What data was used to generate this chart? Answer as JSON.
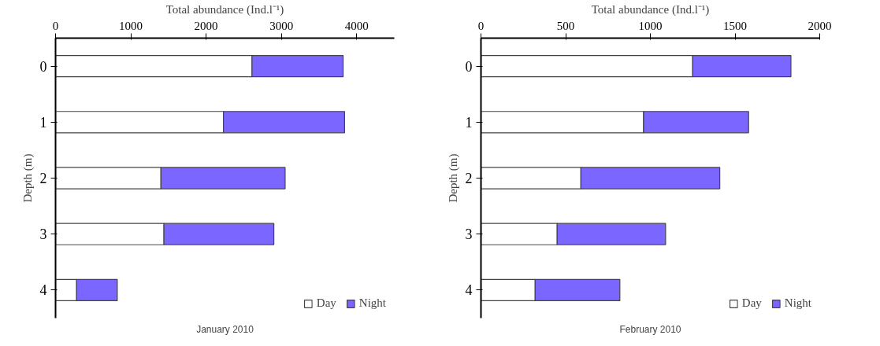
{
  "chart_data": [
    {
      "type": "bar",
      "orientation": "horizontal",
      "stacked": true,
      "title": "January 2010",
      "xlabel": "Total abundance (Ind.l⁻¹)",
      "ylabel": "Depth (m)",
      "categories": [
        "0",
        "1",
        "2",
        "3",
        "4"
      ],
      "series": [
        {
          "name": "Day",
          "color": "#ffffff",
          "values": [
            2610,
            2230,
            1400,
            1440,
            280
          ]
        },
        {
          "name": "Night",
          "color": "#7b66ff",
          "values": [
            1210,
            1610,
            1650,
            1460,
            540
          ]
        }
      ],
      "xlim": [
        0,
        4500
      ],
      "xticks": [
        0,
        1000,
        2000,
        3000,
        4000
      ],
      "grid": false,
      "legend": "bottom right"
    },
    {
      "type": "bar",
      "orientation": "horizontal",
      "stacked": true,
      "title": "February 2010",
      "xlabel": "Total abundance (Ind.l⁻¹)",
      "ylabel": "Depth (m)",
      "categories": [
        "0",
        "1",
        "2",
        "3",
        "4"
      ],
      "series": [
        {
          "name": "Day",
          "color": "#ffffff",
          "values": [
            1250,
            960,
            590,
            450,
            320
          ]
        },
        {
          "name": "Night",
          "color": "#7b66ff",
          "values": [
            580,
            620,
            820,
            640,
            500
          ]
        }
      ],
      "xlim": [
        0,
        2000
      ],
      "xticks": [
        0,
        500,
        1000,
        1500,
        2000
      ],
      "grid": false,
      "legend": "bottom right"
    }
  ]
}
